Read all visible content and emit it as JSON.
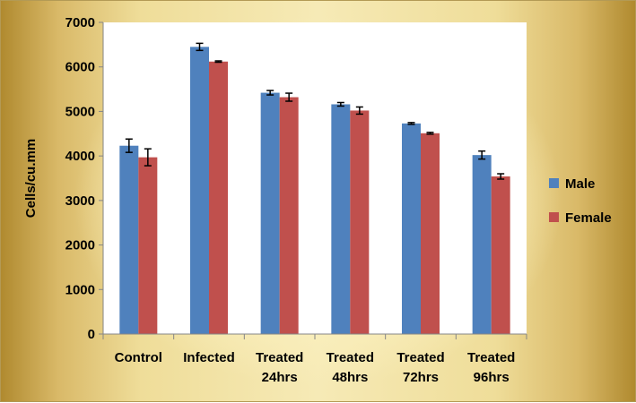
{
  "chart_data": {
    "type": "bar",
    "categories": [
      [
        "Control"
      ],
      [
        "Infected"
      ],
      [
        "Treated",
        "24hrs"
      ],
      [
        "Treated",
        "48hrs"
      ],
      [
        "Treated",
        "72hrs"
      ],
      [
        "Treated",
        "96hrs"
      ]
    ],
    "series": [
      {
        "name": "Male",
        "color": "#4f81bd",
        "values": [
          4230,
          6450,
          5420,
          5160,
          4730,
          4020
        ],
        "errors": [
          150,
          80,
          50,
          40,
          20,
          90
        ]
      },
      {
        "name": "Female",
        "color": "#c0504d",
        "values": [
          3970,
          6120,
          5320,
          5020,
          4510,
          3540
        ],
        "errors": [
          190,
          15,
          90,
          80,
          20,
          60
        ]
      }
    ],
    "title": "",
    "xlabel": "",
    "ylabel": "Cells/cu.mm",
    "ylim": [
      0,
      7000
    ],
    "yticks": [
      0,
      1000,
      2000,
      3000,
      4000,
      5000,
      6000,
      7000
    ],
    "grid": false,
    "legend_position": "right"
  }
}
